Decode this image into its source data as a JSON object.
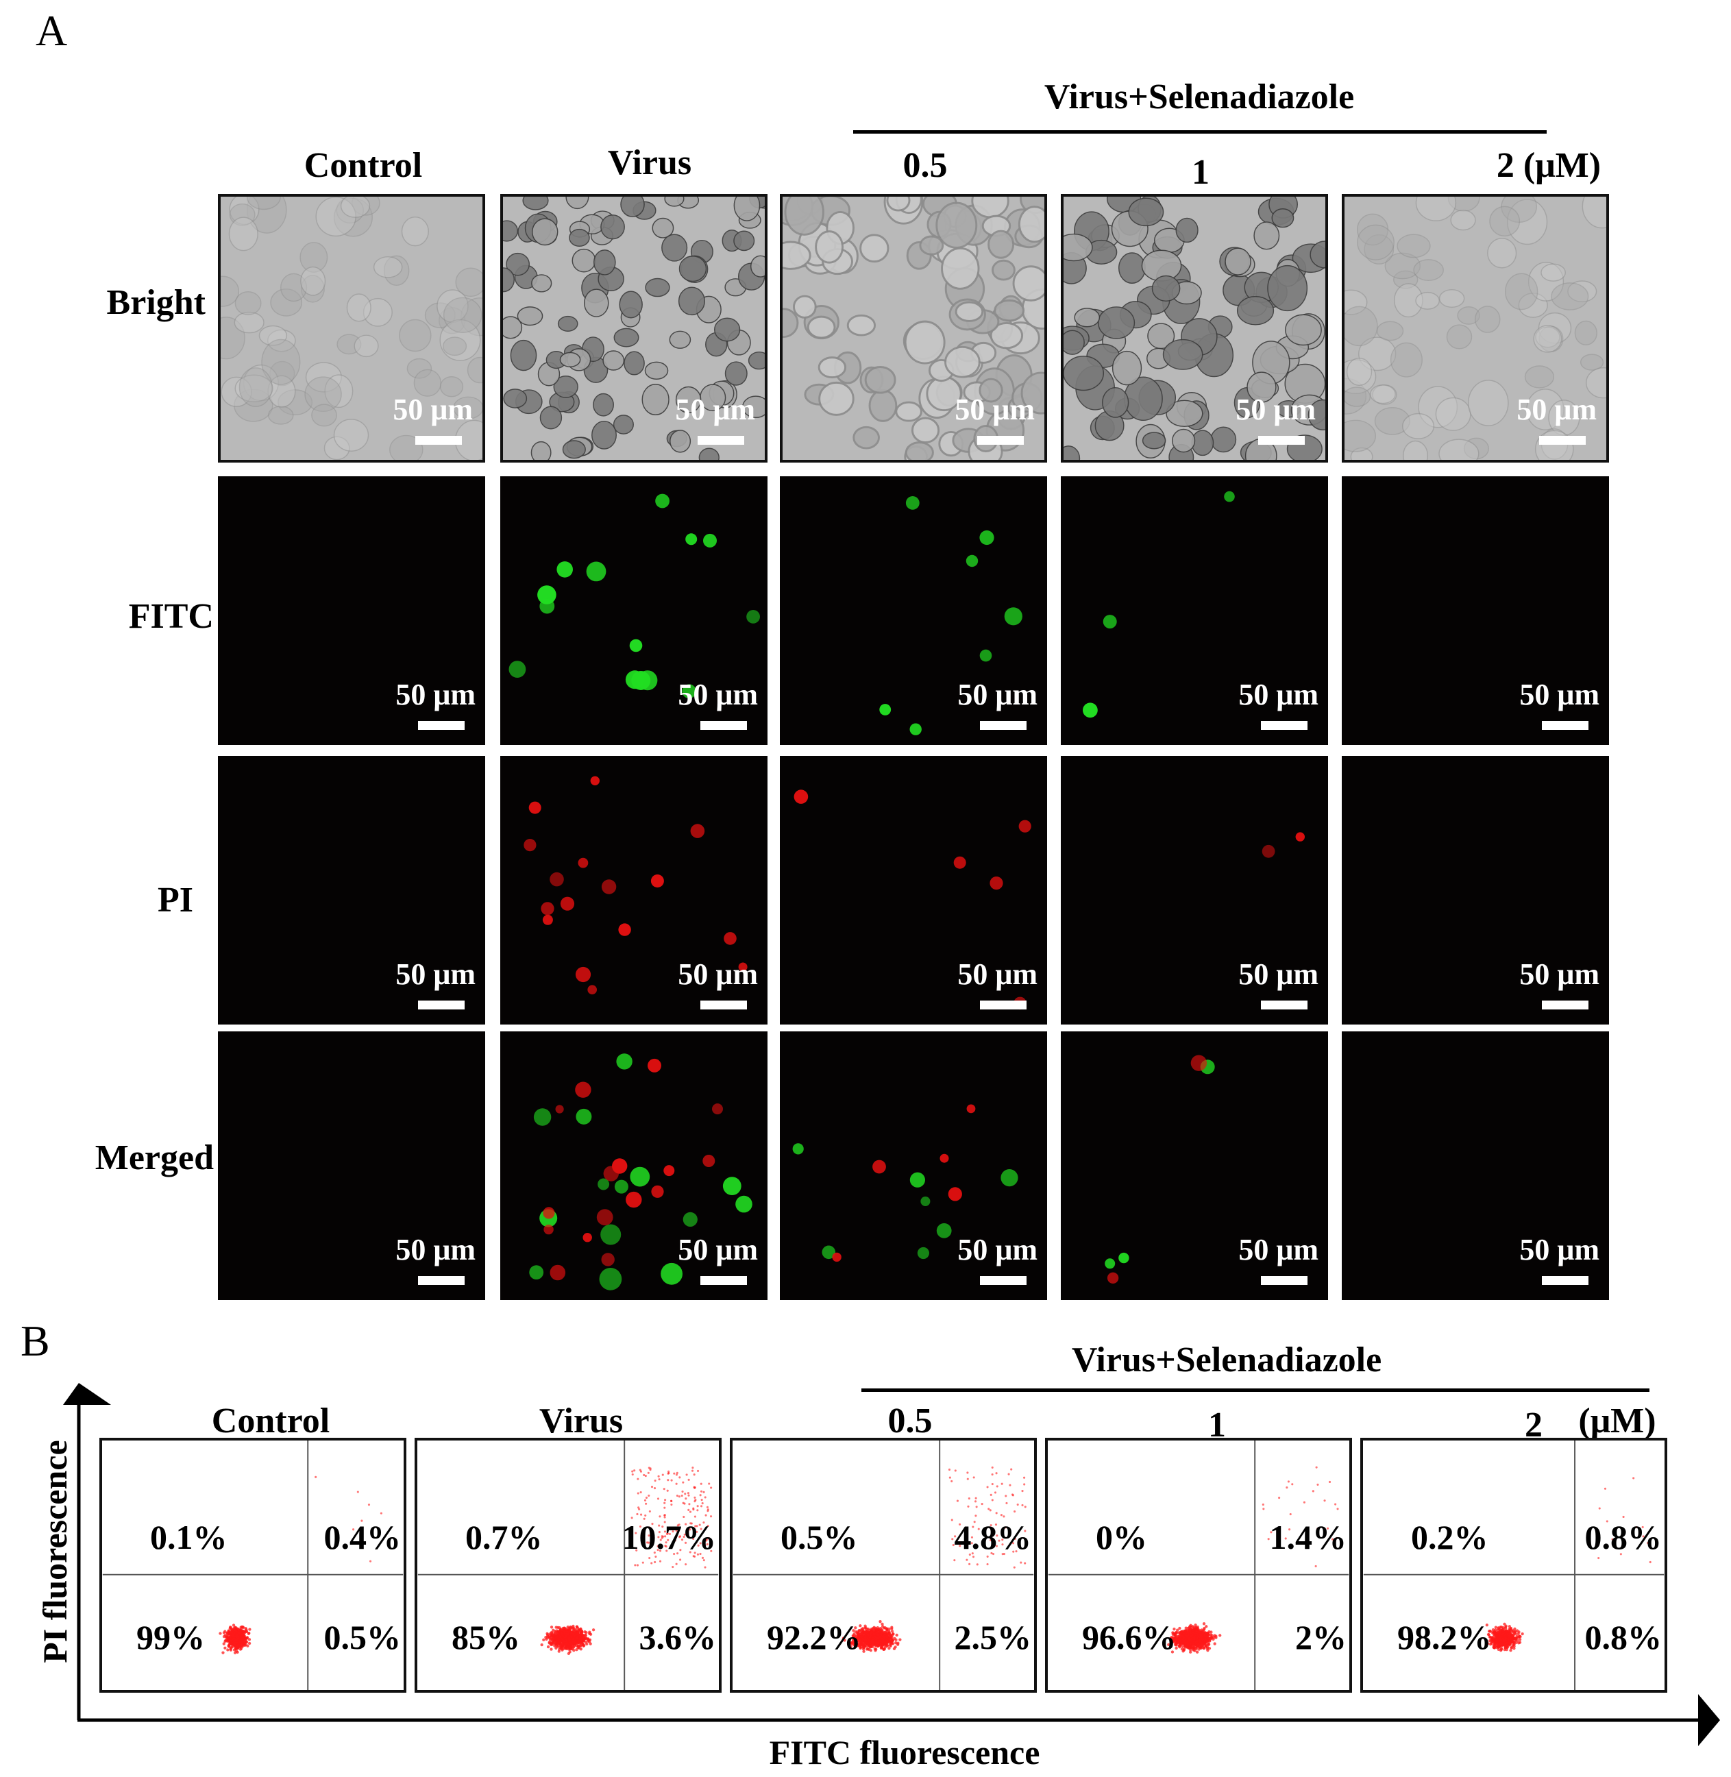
{
  "panel_a": {
    "letter": "A",
    "group_label": "Virus+Selenadiazole",
    "columns": [
      "Control",
      "Virus",
      "0.5",
      "1",
      "2 (μM)"
    ],
    "rows": [
      "Bright",
      "FITC",
      "PI",
      "Merged"
    ],
    "scale_bar_label": "50 μm",
    "colors": {
      "fitc": "#22dd22",
      "pi": "#e01010",
      "bright_bg": "#b9b9b9",
      "dark_bg": "#050303"
    }
  },
  "panel_b": {
    "letter": "B",
    "group_label": "Virus+Selenadiazole",
    "columns": [
      "Control",
      "Virus",
      "0.5",
      "1",
      "2",
      "(μM)"
    ],
    "y_axis_label": "PI fluorescence",
    "x_axis_label": "FITC fluorescence",
    "quadrants": [
      {
        "upper_left": "0.1%",
        "upper_right": "0.4%",
        "lower_left": "99%",
        "lower_right": "0.5%"
      },
      {
        "upper_left": "0.7%",
        "upper_right": "10.7%",
        "lower_left": "85%",
        "lower_right": "3.6%"
      },
      {
        "upper_left": "0.5%",
        "upper_right": "4.8%",
        "lower_left": "92.2%",
        "lower_right": "2.5%"
      },
      {
        "upper_left": "0%",
        "upper_right": "1.4%",
        "lower_left": "96.6%",
        "lower_right": "2%"
      },
      {
        "upper_left": "0.2%",
        "upper_right": "0.8%",
        "lower_left": "98.2%",
        "lower_right": "0.8%"
      }
    ],
    "colors": {
      "dots": "#ff1a1a"
    }
  }
}
